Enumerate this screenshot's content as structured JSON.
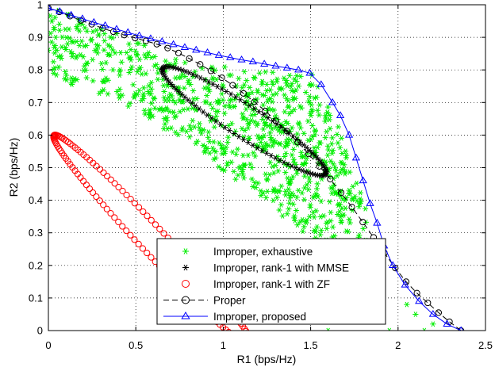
{
  "chart_data": {
    "type": "scatter",
    "xlabel": "R1 (bps/Hz)",
    "ylabel": "R2 (bps/Hz)",
    "xlim": [
      0,
      2.5
    ],
    "ylim": [
      0,
      1
    ],
    "xticks": [
      0,
      0.5,
      1,
      1.5,
      2,
      2.5
    ],
    "xtick_labels": [
      "0",
      "0.5",
      "1",
      "1.5",
      "2",
      "2.5"
    ],
    "yticks": [
      0,
      0.1,
      0.2,
      0.3,
      0.4,
      0.5,
      0.6,
      0.7,
      0.8,
      0.9,
      1
    ],
    "ytick_labels": [
      "0",
      "0.1",
      "0.2",
      "0.3",
      "0.4",
      "0.5",
      "0.6",
      "0.7",
      "0.8",
      "0.9",
      "1"
    ],
    "grid": true,
    "legend_position": "bottom-center",
    "series": [
      {
        "name": "Improper, exhaustive",
        "marker": "asterisk",
        "color": "#00ee00",
        "description_region": [
          [
            0,
            1
          ],
          [
            0.4,
            0.91
          ],
          [
            0.8,
            0.82
          ],
          [
            1.2,
            0.8
          ],
          [
            1.5,
            0.8
          ],
          [
            1.7,
            0.58
          ],
          [
            1.78,
            0.45
          ],
          [
            1.85,
            0.3
          ],
          [
            1.92,
            0.12
          ],
          [
            1.85,
            0.05
          ],
          [
            1.6,
            0.2
          ],
          [
            1.2,
            0.42
          ],
          [
            0.9,
            0.52
          ],
          [
            0.5,
            0.68
          ],
          [
            0.15,
            0.75
          ],
          [
            0.02,
            0.79
          ]
        ],
        "scattered_points": [
          [
            0.0,
            0.86
          ],
          [
            0.02,
            0.95
          ],
          [
            0.03,
            0.79
          ],
          [
            1.6,
            0.0
          ],
          [
            1.95,
            0.0
          ],
          [
            2.2,
            0.02
          ],
          [
            2.15,
            0.0
          ],
          [
            2.05,
            0.08
          ],
          [
            2.1,
            0.05
          ],
          [
            1.5,
            0.05
          ],
          [
            1.55,
            0.12
          ],
          [
            1.6,
            0.09
          ]
        ]
      },
      {
        "name": "Improper, rank-1 with MMSE",
        "marker": "asterisk",
        "color": "#000000",
        "ellipse": {
          "cx": 1.12,
          "cy": 0.643,
          "rx": 0.495,
          "ry": 0.055,
          "angle_deg": -18.7,
          "points": 110
        }
      },
      {
        "name": "Improper, rank-1 with ZF",
        "marker": "circle",
        "color": "#ff0000",
        "ellipse": {
          "cx": 0.6,
          "cy": 0.275,
          "rx": 0.655,
          "ry": 0.05,
          "angle_deg": -29.5,
          "points": 150
        }
      },
      {
        "name": "Proper",
        "marker": "circle",
        "color": "#000000",
        "line_style": "dashed",
        "x": [
          0,
          0.062,
          0.124,
          0.186,
          0.248,
          0.31,
          0.372,
          0.434,
          0.496,
          0.558,
          0.62,
          0.682,
          0.744,
          0.806,
          0.868,
          0.93,
          0.992,
          1.054,
          1.116,
          1.178,
          1.24,
          1.302,
          1.364,
          1.426,
          1.488,
          1.55,
          1.612,
          1.674,
          1.736,
          1.798,
          1.86,
          1.922,
          1.984,
          2.046,
          2.108,
          2.17,
          2.232,
          2.294,
          2.36
        ],
        "y": [
          0.99,
          0.978,
          0.965,
          0.952,
          0.94,
          0.928,
          0.917,
          0.907,
          0.898,
          0.889,
          0.879,
          0.867,
          0.852,
          0.835,
          0.817,
          0.797,
          0.776,
          0.753,
          0.728,
          0.702,
          0.674,
          0.644,
          0.612,
          0.578,
          0.542,
          0.504,
          0.465,
          0.423,
          0.379,
          0.333,
          0.286,
          0.238,
          0.192,
          0.15,
          0.115,
          0.085,
          0.055,
          0.027,
          0.0
        ]
      },
      {
        "name": "Improper, proposed",
        "marker": "triangle",
        "color": "#0000ff",
        "x": [
          0,
          0.065,
          0.13,
          0.195,
          0.26,
          0.325,
          0.39,
          0.455,
          0.52,
          0.585,
          0.65,
          0.715,
          0.78,
          0.845,
          0.91,
          0.975,
          1.04,
          1.105,
          1.17,
          1.235,
          1.3,
          1.365,
          1.43,
          1.495,
          1.56,
          1.625,
          1.67,
          1.72,
          1.76,
          1.8,
          1.84,
          1.88,
          1.92,
          1.97,
          2.04,
          2.12,
          2.2,
          2.28,
          2.36
        ],
        "y": [
          0.99,
          0.979,
          0.968,
          0.957,
          0.946,
          0.936,
          0.925,
          0.915,
          0.905,
          0.896,
          0.887,
          0.878,
          0.869,
          0.861,
          0.853,
          0.845,
          0.838,
          0.831,
          0.825,
          0.818,
          0.812,
          0.806,
          0.8,
          0.79,
          0.755,
          0.7,
          0.66,
          0.6,
          0.53,
          0.46,
          0.39,
          0.33,
          0.26,
          0.2,
          0.14,
          0.09,
          0.05,
          0.02,
          0.0
        ]
      }
    ]
  }
}
